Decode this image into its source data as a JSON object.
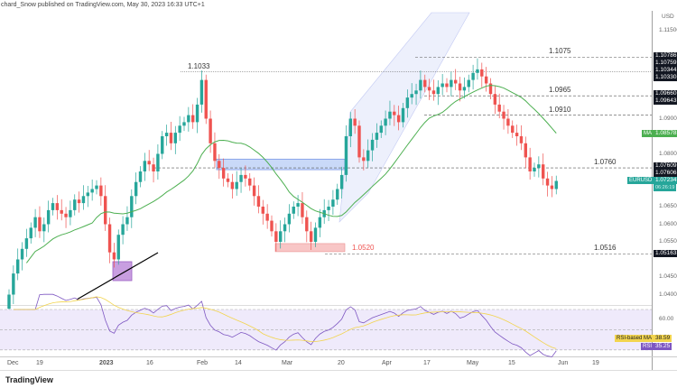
{
  "header": {
    "title": "chard_Snow published on TradingView.com, May 30, 2023 16:33 UTC+1"
  },
  "footer": {
    "logo": "TradingView"
  },
  "colors": {
    "up": "#26a69a",
    "down": "#ef5350",
    "ma": "#4caf50",
    "rsi": "#7e57c2",
    "rsi_ma": "#f2d44e",
    "symbol_tag": "#26a69a"
  },
  "chart_data": {
    "type": "candlestick",
    "symbol": "EURUSD",
    "currency": "USD",
    "ylim": [
      1.035,
      1.12
    ],
    "x_tick_labels": [
      "Dec",
      "19",
      "2023",
      "16",
      "Feb",
      "14",
      "Mar",
      "20",
      "Apr",
      "17",
      "May",
      "15",
      "Jun",
      "19"
    ],
    "y_tick_labels": [
      "1.11500",
      "1.09000",
      "1.08000",
      "1.06500",
      "1.06000",
      "1.05500",
      "1.04500",
      "1.04000"
    ],
    "closes": [
      1.04,
      1.046,
      1.05,
      1.053,
      1.056,
      1.059,
      1.062,
      1.058,
      1.06,
      1.064,
      1.066,
      1.064,
      1.063,
      1.062,
      1.064,
      1.067,
      1.066,
      1.068,
      1.069,
      1.07,
      1.071,
      1.068,
      1.06,
      1.052,
      1.05,
      1.057,
      1.06,
      1.062,
      1.068,
      1.072,
      1.075,
      1.078,
      1.077,
      1.075,
      1.08,
      1.085,
      1.086,
      1.083,
      1.086,
      1.088,
      1.089,
      1.091,
      1.089,
      1.094,
      1.101,
      1.09,
      1.083,
      1.078,
      1.076,
      1.073,
      1.072,
      1.07,
      1.072,
      1.074,
      1.073,
      1.071,
      1.068,
      1.065,
      1.063,
      1.061,
      1.058,
      1.055,
      1.058,
      1.06,
      1.063,
      1.065,
      1.066,
      1.062,
      1.058,
      1.055,
      1.059,
      1.062,
      1.064,
      1.065,
      1.067,
      1.07,
      1.074,
      1.085,
      1.09,
      1.088,
      1.079,
      1.078,
      1.081,
      1.084,
      1.086,
      1.088,
      1.09,
      1.092,
      1.091,
      1.089,
      1.093,
      1.096,
      1.097,
      1.098,
      1.101,
      1.099,
      1.098,
      1.097,
      1.099,
      1.1,
      1.099,
      1.101,
      1.1,
      1.098,
      1.099,
      1.101,
      1.103,
      1.104,
      1.102,
      1.1,
      1.097,
      1.094,
      1.092,
      1.09,
      1.088,
      1.086,
      1.085,
      1.083,
      1.079,
      1.075,
      1.076,
      1.077,
      1.073,
      1.071,
      1.07,
      1.0723
    ],
    "ma_label": "MA",
    "ma_value": "1.08578",
    "last_price": "1.07234",
    "countdown": "06:26:19",
    "price_tags": [
      "1.10786",
      "1.10759",
      "1.10344",
      "1.10330",
      "1.09660",
      "1.09643",
      "1.07609",
      "1.07606",
      "1.05163"
    ],
    "levels": [
      {
        "value": 1.1075,
        "label": "1.1075"
      },
      {
        "value": 1.1033,
        "label": "1.1033"
      },
      {
        "value": 1.0965,
        "label": "1.0965"
      },
      {
        "value": 1.091,
        "label": "1.0910"
      },
      {
        "value": 1.076,
        "label": "1.0760"
      },
      {
        "value": 1.0516,
        "label": "1.0516"
      }
    ],
    "support_label": "1.0520",
    "rsi": {
      "label": "RSI",
      "value": "35.25",
      "ma_label": "RSI-based MA",
      "ma_value": "38.59",
      "tick": "60.00"
    }
  }
}
